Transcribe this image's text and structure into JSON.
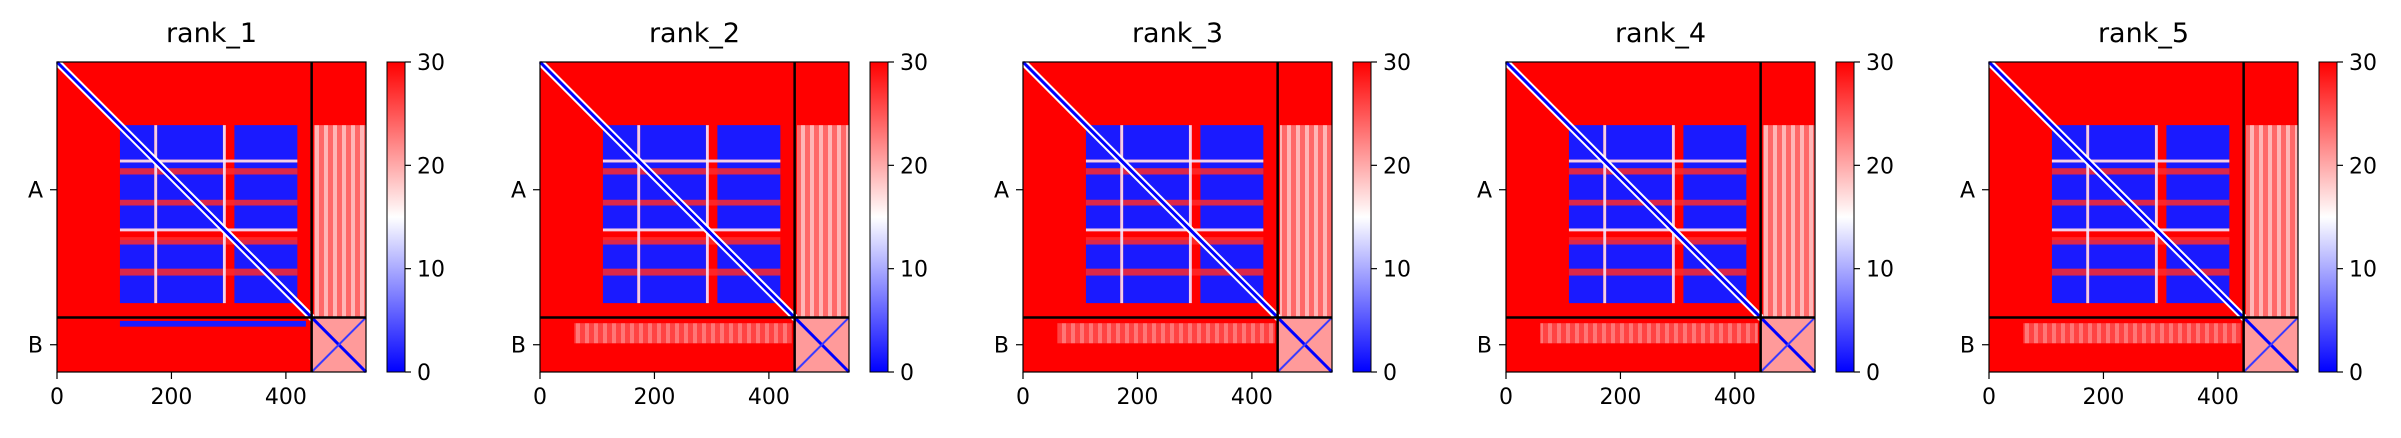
{
  "chart_data": [
    {
      "type": "heatmap",
      "title": "rank_1",
      "xlim": [
        0,
        540
      ],
      "xticks": [
        0,
        200,
        400
      ],
      "chain_boundary": 445,
      "ytick_labels": [
        "A",
        "B"
      ],
      "colorbar": {
        "min": 0,
        "max": 30,
        "ticks": [
          0,
          10,
          20,
          30
        ],
        "colors": [
          "#0000ff",
          "#ffffff",
          "#ff0000"
        ]
      },
      "blocks": [
        [
          110,
          170
        ],
        [
          175,
          290
        ],
        [
          310,
          420
        ]
      ],
      "b_chain_band": "blue"
    },
    {
      "type": "heatmap",
      "title": "rank_2",
      "xlim": [
        0,
        540
      ],
      "xticks": [
        0,
        200,
        400
      ],
      "chain_boundary": 445,
      "ytick_labels": [
        "A",
        "B"
      ],
      "colorbar": {
        "min": 0,
        "max": 30,
        "ticks": [
          0,
          10,
          20,
          30
        ],
        "colors": [
          "#0000ff",
          "#ffffff",
          "#ff0000"
        ]
      },
      "blocks": [
        [
          110,
          170
        ],
        [
          175,
          290
        ],
        [
          310,
          420
        ]
      ],
      "b_chain_band": "pale"
    },
    {
      "type": "heatmap",
      "title": "rank_3",
      "xlim": [
        0,
        540
      ],
      "xticks": [
        0,
        200,
        400
      ],
      "chain_boundary": 445,
      "ytick_labels": [
        "A",
        "B"
      ],
      "colorbar": {
        "min": 0,
        "max": 30,
        "ticks": [
          0,
          10,
          20,
          30
        ],
        "colors": [
          "#0000ff",
          "#ffffff",
          "#ff0000"
        ]
      },
      "blocks": [
        [
          110,
          170
        ],
        [
          175,
          290
        ],
        [
          310,
          420
        ]
      ],
      "b_chain_band": "pale"
    },
    {
      "type": "heatmap",
      "title": "rank_4",
      "xlim": [
        0,
        540
      ],
      "xticks": [
        0,
        200,
        400
      ],
      "chain_boundary": 445,
      "ytick_labels": [
        "A",
        "B"
      ],
      "colorbar": {
        "min": 0,
        "max": 30,
        "ticks": [
          0,
          10,
          20,
          30
        ],
        "colors": [
          "#0000ff",
          "#ffffff",
          "#ff0000"
        ]
      },
      "blocks": [
        [
          110,
          170
        ],
        [
          175,
          290
        ],
        [
          310,
          420
        ]
      ],
      "b_chain_band": "pale"
    },
    {
      "type": "heatmap",
      "title": "rank_5",
      "xlim": [
        0,
        540
      ],
      "xticks": [
        0,
        200,
        400
      ],
      "chain_boundary": 445,
      "ytick_labels": [
        "A",
        "B"
      ],
      "colorbar": {
        "min": 0,
        "max": 30,
        "ticks": [
          0,
          10,
          20,
          30
        ],
        "colors": [
          "#0000ff",
          "#ffffff",
          "#ff0000"
        ]
      },
      "blocks": [
        [
          110,
          170
        ],
        [
          175,
          290
        ],
        [
          310,
          420
        ]
      ],
      "b_chain_band": "pale"
    }
  ]
}
